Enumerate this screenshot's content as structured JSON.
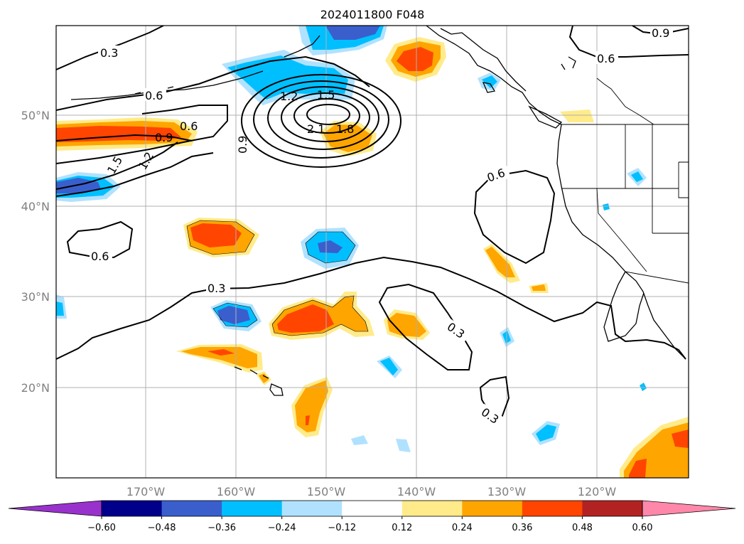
{
  "title": "2024011800 F048",
  "lat_labels": [
    "50°N",
    "40°N",
    "30°N",
    "20°N"
  ],
  "lon_labels": [
    "170°W",
    "160°W",
    "150°W",
    "140°W",
    "130°W",
    "120°W"
  ],
  "colorbar": {
    "ticks": [
      "−0.60",
      "−0.48",
      "−0.36",
      "−0.24",
      "−0.12",
      "0.12",
      "0.24",
      "0.36",
      "0.48",
      "0.60"
    ],
    "colors": [
      "#9932cc",
      "#00008b",
      "#3a5fcd",
      "#00bfff",
      "#b0e2ff",
      "#ffffff",
      "#ffeb8a",
      "#ffa500",
      "#ff4500",
      "#b22222",
      "#ff88aa"
    ]
  },
  "contour_labels": {
    "nw_03": "0.3",
    "ne_09": "0.9",
    "ne_06": "0.6",
    "nw_06": "0.6",
    "c_12": "1.2",
    "c_15": "1.5",
    "w_06": "0.6",
    "w_09": "0.9",
    "c_21": "2.1",
    "c_18": "1.8",
    "c_09": "0.9",
    "w_15": "1.5",
    "w_12": "1.2",
    "e_06": "0.6",
    "sw_06": "0.6",
    "mid_03": "0.3",
    "se_03a": "0.3",
    "se_03b": "0.3"
  },
  "colors": {
    "grid": "#b0b0b0",
    "tick_text": "#808080"
  }
}
